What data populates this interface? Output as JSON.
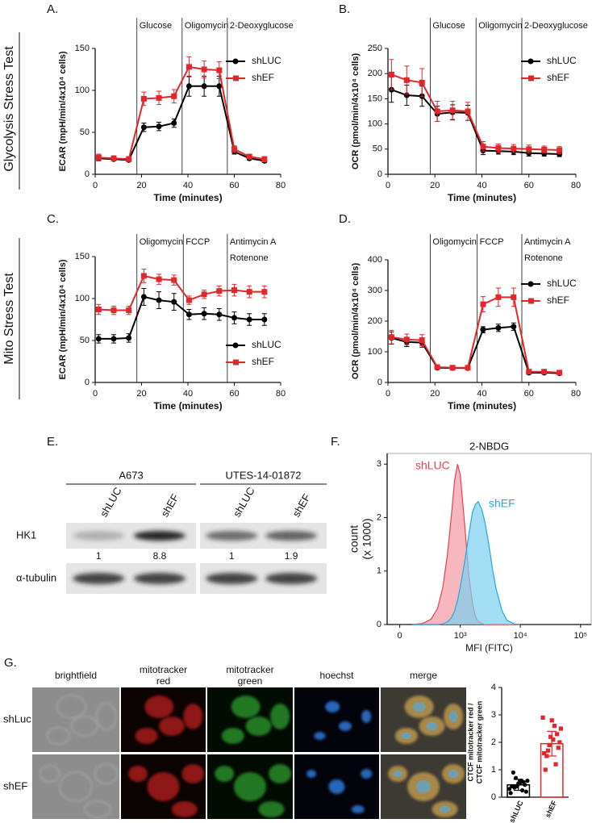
{
  "row_labels": [
    "Glycolysis Stress Test",
    "Mito Stress Test"
  ],
  "chart_data": [
    {
      "type": "line",
      "panel": "A.",
      "xlabel": "Time (minutes)",
      "ylabel": "ECAR (mpH/min/4x10⁴ cells)",
      "x": [
        1.5,
        8,
        14.5,
        21,
        27.5,
        34,
        40.5,
        47,
        53.5,
        60,
        66.5,
        73
      ],
      "xlim": [
        0,
        80
      ],
      "xticks": [
        0,
        20,
        40,
        60,
        80
      ],
      "ylim": [
        0,
        150
      ],
      "yticks": [
        0,
        50,
        100,
        150
      ],
      "legend": "upper right",
      "events": [
        {
          "x": 18,
          "label": [
            "Glucose"
          ]
        },
        {
          "x": 37.5,
          "label": [
            "Oligomycin"
          ]
        },
        {
          "x": 57,
          "label": [
            "2-Deoxyglucose"
          ]
        }
      ],
      "series": [
        {
          "name": "shLUC",
          "color": "#000000",
          "marker": "circle",
          "values": [
            19,
            18,
            17,
            56,
            57,
            61,
            105,
            105,
            105,
            27,
            19,
            16
          ],
          "errors": [
            3,
            2,
            2,
            5,
            5,
            5,
            12,
            12,
            12,
            3,
            2,
            2
          ]
        },
        {
          "name": "shEF",
          "color": "#e3262b",
          "marker": "square",
          "values": [
            20,
            19,
            18,
            90,
            91,
            93,
            128,
            125,
            124,
            30,
            21,
            18
          ],
          "errors": [
            4,
            3,
            3,
            8,
            8,
            8,
            12,
            10,
            10,
            4,
            3,
            3
          ]
        }
      ]
    },
    {
      "type": "line",
      "panel": "B.",
      "xlabel": "Time (minutes)",
      "ylabel": "OCR (pmol/min/4x10⁴ cells)",
      "x": [
        1.5,
        8,
        14.5,
        21,
        27.5,
        34,
        40.5,
        47,
        53.5,
        60,
        66.5,
        73
      ],
      "xlim": [
        0,
        80
      ],
      "xticks": [
        0,
        20,
        40,
        60,
        80
      ],
      "ylim": [
        0,
        250
      ],
      "yticks": [
        0,
        50,
        100,
        150,
        200,
        250
      ],
      "legend": "upper right",
      "events": [
        {
          "x": 18,
          "label": [
            "Glucose"
          ]
        },
        {
          "x": 37.5,
          "label": [
            "Oligomycin"
          ]
        },
        {
          "x": 57,
          "label": [
            "2-Deoxyglucose"
          ]
        }
      ],
      "series": [
        {
          "name": "shLUC",
          "color": "#000000",
          "marker": "circle",
          "values": [
            168,
            157,
            155,
            120,
            123,
            122,
            47,
            46,
            45,
            42,
            41,
            40
          ],
          "errors": [
            25,
            20,
            20,
            15,
            15,
            15,
            8,
            6,
            6,
            6,
            5,
            5
          ]
        },
        {
          "name": "shEF",
          "color": "#e3262b",
          "marker": "square",
          "values": [
            198,
            187,
            182,
            125,
            127,
            125,
            55,
            52,
            51,
            50,
            49,
            48
          ],
          "errors": [
            30,
            28,
            28,
            20,
            18,
            18,
            10,
            8,
            8,
            8,
            7,
            7
          ]
        }
      ]
    },
    {
      "type": "line",
      "panel": "C.",
      "xlabel": "Time (minutes)",
      "ylabel": "ECAR (mpH/min/4x10⁴ cells)",
      "x": [
        1.5,
        8,
        14.5,
        21,
        27.5,
        34,
        40.5,
        47,
        53.5,
        60,
        66.5,
        73
      ],
      "xlim": [
        0,
        80
      ],
      "xticks": [
        0,
        20,
        40,
        60,
        80
      ],
      "ylim": [
        0,
        150
      ],
      "yticks": [
        0,
        50,
        100,
        150
      ],
      "legend": "lower right",
      "events": [
        {
          "x": 18,
          "label": [
            "Oligomycin"
          ]
        },
        {
          "x": 38,
          "label": [
            "FCCP"
          ]
        },
        {
          "x": 57,
          "label": [
            "Antimycin A",
            "Rotenone"
          ]
        }
      ],
      "series": [
        {
          "name": "shLUC",
          "color": "#000000",
          "marker": "circle",
          "values": [
            52,
            52,
            53,
            102,
            98,
            96,
            81,
            82,
            81,
            77,
            75,
            75
          ],
          "errors": [
            5,
            5,
            5,
            10,
            10,
            10,
            6,
            7,
            7,
            7,
            7,
            7
          ]
        },
        {
          "name": "shEF",
          "color": "#e3262b",
          "marker": "square",
          "values": [
            87,
            86,
            86,
            127,
            123,
            122,
            98,
            105,
            109,
            110,
            108,
            108
          ],
          "errors": [
            6,
            5,
            5,
            8,
            6,
            6,
            5,
            5,
            6,
            7,
            7,
            7
          ]
        }
      ]
    },
    {
      "type": "line",
      "panel": "D.",
      "xlabel": "Time (minutes)",
      "ylabel": "OCR (pmol/min/4x10⁴ cells)",
      "x": [
        1.5,
        8,
        14.5,
        21,
        27.5,
        34,
        40.5,
        47,
        53.5,
        60,
        66.5,
        73
      ],
      "xlim": [
        0,
        80
      ],
      "xticks": [
        0,
        20,
        40,
        60,
        80
      ],
      "ylim": [
        0,
        400
      ],
      "yticks": [
        0,
        100,
        200,
        300,
        400
      ],
      "legend": "upper right",
      "events": [
        {
          "x": 18,
          "label": [
            "Oligomycin"
          ]
        },
        {
          "x": 38,
          "label": [
            "FCCP"
          ]
        },
        {
          "x": 57,
          "label": [
            "Antimycin A",
            "Rotenone"
          ]
        }
      ],
      "series": [
        {
          "name": "shLUC",
          "color": "#000000",
          "marker": "circle",
          "values": [
            145,
            132,
            130,
            48,
            47,
            47,
            172,
            178,
            182,
            32,
            32,
            30
          ],
          "errors": [
            20,
            15,
            15,
            5,
            5,
            5,
            10,
            12,
            12,
            5,
            5,
            5
          ]
        },
        {
          "name": "shEF",
          "color": "#e3262b",
          "marker": "square",
          "values": [
            148,
            140,
            138,
            50,
            48,
            48,
            255,
            278,
            278,
            35,
            35,
            32
          ],
          "errors": [
            22,
            18,
            18,
            6,
            5,
            5,
            25,
            30,
            30,
            6,
            6,
            6
          ]
        }
      ]
    },
    {
      "type": "area",
      "panel": "F.",
      "title": "2-NBDG",
      "xlabel": "MFI (FITC)",
      "ylabel": [
        "count",
        "(x 1000)"
      ],
      "xscale": "asinh",
      "xlim": [
        -100,
        150000
      ],
      "xticks": [
        0,
        {
          "value": 1000,
          "label": "10³"
        },
        {
          "value": 10000,
          "label": "10⁴"
        },
        {
          "value": 100000,
          "label": "10⁵"
        }
      ],
      "ylim": [
        0,
        3.2
      ],
      "yticks": [
        0,
        1,
        2,
        3
      ],
      "x": [
        100,
        200,
        300,
        400,
        500,
        600,
        700,
        800,
        900,
        1000,
        1200,
        1400,
        1600,
        1800,
        2000,
        2300,
        2600,
        3000,
        3500,
        4000,
        5000,
        6000,
        8000,
        10000
      ],
      "series": [
        {
          "name": "shLUC",
          "color": "#e8414f",
          "fill": "#f29aa2",
          "values": [
            0,
            0.02,
            0.1,
            0.3,
            0.7,
            1.3,
            2.0,
            2.7,
            3.0,
            2.8,
            1.8,
            0.9,
            0.4,
            0.15,
            0.06,
            0.02,
            0,
            0,
            0,
            0,
            0,
            0,
            0,
            0
          ]
        },
        {
          "name": "shEF",
          "color": "#23a9dc",
          "fill": "#7ccfee",
          "values": [
            0,
            0,
            0,
            0,
            0.01,
            0.05,
            0.12,
            0.25,
            0.45,
            0.7,
            1.2,
            1.7,
            2.1,
            2.25,
            2.3,
            2.15,
            1.9,
            1.5,
            1.0,
            0.65,
            0.25,
            0.08,
            0.01,
            0
          ]
        }
      ]
    },
    {
      "type": "bar",
      "ylabel": [
        "CTCF mitotracker red /",
        "CTCF mitotracker green"
      ],
      "categories": [
        "shLUC",
        "shEF"
      ],
      "values": [
        0.45,
        1.95
      ],
      "errors": [
        0.2,
        0.45
      ],
      "colors": [
        "#000000",
        "#e3262b"
      ],
      "points": [
        [
          0.3,
          0.5,
          0.6,
          0.4,
          0.2,
          0.7,
          0.45,
          0.35,
          0.55,
          0.9,
          0.25,
          0.4,
          0.6,
          0.15,
          0.5
        ],
        [
          2.9,
          2.8,
          2.5,
          2.2,
          2.0,
          1.9,
          1.8,
          1.7,
          2.3,
          1.5,
          1.2,
          1.0,
          2.6,
          1.6,
          2.1
        ]
      ],
      "ylim": [
        0,
        4
      ],
      "yticks": [
        0,
        1,
        2,
        3,
        4
      ]
    }
  ],
  "blot": {
    "panel": "E.",
    "rows": [
      "HK1",
      "α-tubulin"
    ],
    "groups": [
      {
        "name": "A673",
        "lanes": [
          "shLUC",
          "shEF"
        ],
        "quant": [
          1,
          8.8
        ]
      },
      {
        "name": "UTES-14-01872",
        "lanes": [
          "shLUC",
          "shEF"
        ],
        "quant": [
          1,
          1.9
        ]
      }
    ]
  },
  "microscopy": {
    "panel": "G.",
    "columns": [
      [
        "brightfield"
      ],
      [
        "mitotracker",
        "red"
      ],
      [
        "mitotracker",
        "green"
      ],
      [
        "hoechst"
      ],
      [
        "merge"
      ]
    ],
    "rows": [
      "shLuc",
      "shEF"
    ]
  }
}
